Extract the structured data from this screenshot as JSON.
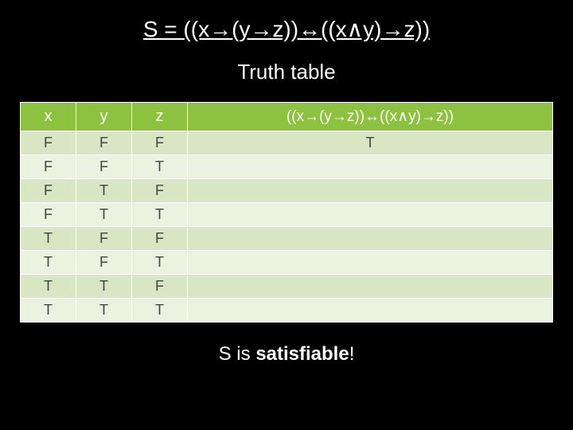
{
  "title": "S = ((x→(y→z))↔((x∧y)→z))",
  "subtitle": "Truth table",
  "table": {
    "columns": [
      "x",
      "y",
      "z",
      "((x→(y→z))↔((x∧y)→z))"
    ],
    "rows": [
      [
        "F",
        "F",
        "F",
        "T"
      ],
      [
        "F",
        "F",
        "T",
        ""
      ],
      [
        "F",
        "T",
        "F",
        ""
      ],
      [
        "F",
        "T",
        "T",
        ""
      ],
      [
        "T",
        "F",
        "F",
        ""
      ],
      [
        "T",
        "F",
        "T",
        ""
      ],
      [
        "T",
        "T",
        "F",
        ""
      ],
      [
        "T",
        "T",
        "T",
        ""
      ]
    ],
    "header_bg": "#8cc23f",
    "header_fg": "#ffffff",
    "row_bg_odd": "#d8e6c3",
    "row_bg_even": "#ecf2e0",
    "cell_fg": "#444444",
    "border_color": "#ffffff",
    "col_widths": [
      "70px",
      "70px",
      "70px",
      "auto"
    ]
  },
  "conclusion_prefix": "S is ",
  "conclusion_bold": "satisfiable",
  "conclusion_suffix": "!",
  "background_color": "#000000",
  "text_color": "#ffffff"
}
